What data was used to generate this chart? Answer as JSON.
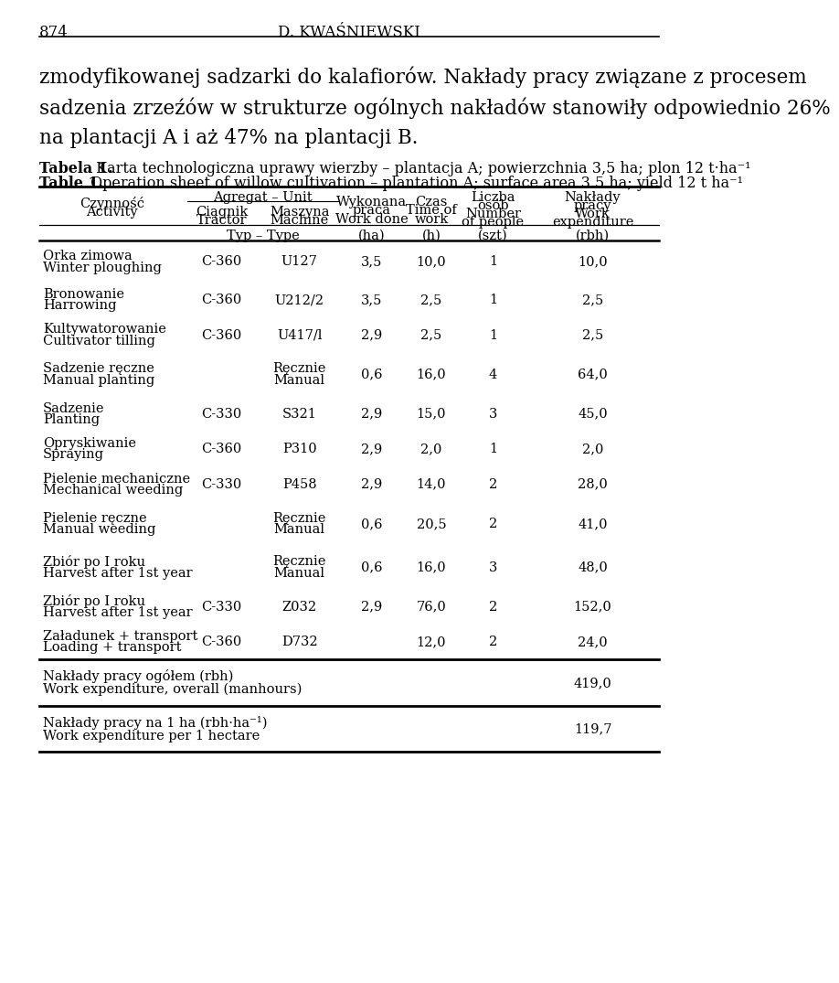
{
  "page_num": "874",
  "page_header": "D. KWAŚNIEWSKI",
  "intro_text_line1": "zmodyfikowanej sadzarki do kalafiorów. Nakłady pracy związane z procesem",
  "intro_text_line2": "sadzenia zrzeźów w strukturze ogólnych nakładów stanowiły odpowiednio 26%",
  "intro_text_line3": "na plantacji A i aż 47% na plantacji B.",
  "table_title_bold1": "Tabela 1.",
  "table_title_rest1": " Karta technologiczna uprawy wierzby – plantacja A; powierzchnia 3,5 ha; plon 12 t·ha⁻¹",
  "table_title_bold2": "Table 1.",
  "table_title_rest2": " Operation sheet of willow cultivation – plantation A; surface area 3.5 ha; yield 12 t ha⁻¹",
  "rows": [
    {
      "activity_pl": "Orka zimowa",
      "activity_en": "Winter ploughing",
      "tractor": "C-360",
      "machine": "U127",
      "area": "3,5",
      "time": "10,0",
      "people": "1",
      "work_exp": "10,0"
    },
    {
      "activity_pl": "Bronowanie",
      "activity_en": "Harrowing",
      "tractor": "C-360",
      "machine": "U212/2",
      "area": "3,5",
      "time": "2,5",
      "people": "1",
      "work_exp": "2,5"
    },
    {
      "activity_pl": "Kultywatorowanie",
      "activity_en": "Cultivator tilling",
      "tractor": "C-360",
      "machine": "U417/l",
      "area": "2,9",
      "time": "2,5",
      "people": "1",
      "work_exp": "2,5"
    },
    {
      "activity_pl": "Sadzenie ręczne",
      "activity_en": "Manual planting",
      "tractor": "",
      "machine_pl": "Ręcznie",
      "machine_en": "Manual",
      "area": "0,6",
      "time": "16,0",
      "people": "4",
      "work_exp": "64,0"
    },
    {
      "activity_pl": "Sadzenie",
      "activity_en": "Planting",
      "tractor": "C-330",
      "machine": "S321",
      "area": "2,9",
      "time": "15,0",
      "people": "3",
      "work_exp": "45,0"
    },
    {
      "activity_pl": "Opryskiwanie",
      "activity_en": "Spraying",
      "tractor": "C-360",
      "machine": "P310",
      "area": "2,9",
      "time": "2,0",
      "people": "1",
      "work_exp": "2,0"
    },
    {
      "activity_pl": "Pielenie mechaniczne",
      "activity_en": "Mechanical weeding",
      "tractor": "C-330",
      "machine": "P458",
      "area": "2,9",
      "time": "14,0",
      "people": "2",
      "work_exp": "28,0"
    },
    {
      "activity_pl": "Pielenie ręczne",
      "activity_en": "Manual weeding",
      "tractor": "",
      "machine_pl": "Ręcznie",
      "machine_en": "Manual",
      "area": "0,6",
      "time": "20,5",
      "people": "2",
      "work_exp": "41,0"
    },
    {
      "activity_pl": "Zbiór po I roku",
      "activity_en": "Harvest after 1st year",
      "tractor": "",
      "machine_pl": "Ręcznie",
      "machine_en": "Manual",
      "area": "0,6",
      "time": "16,0",
      "people": "3",
      "work_exp": "48,0"
    },
    {
      "activity_pl": "Zbiór po I roku",
      "activity_en": "Harvest after 1st year",
      "tractor": "C-330",
      "machine": "Z032",
      "area": "2,9",
      "time": "76,0",
      "people": "2",
      "work_exp": "152,0"
    },
    {
      "activity_pl": "Załadunek + transport",
      "activity_en": "Loading + transport",
      "tractor": "C-360",
      "machine": "D732",
      "area": "",
      "time": "12,0",
      "people": "2",
      "work_exp": "24,0"
    }
  ],
  "summary1_pl": "Nakłady pracy ogółem (rbh)",
  "summary1_en": "Work expenditure, overall (manhours)",
  "summary1_val": "419,0",
  "summary2_pl": "Nakłady pracy na 1 ha (rbh·ha⁻¹)",
  "summary2_en": "Work expenditure per 1 hectare",
  "summary2_val": "119,7"
}
